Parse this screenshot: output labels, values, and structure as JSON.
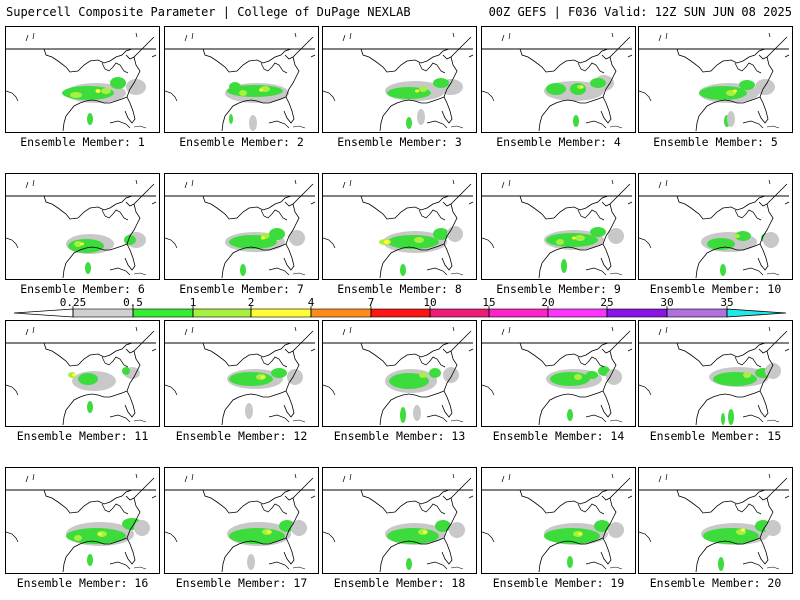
{
  "header": {
    "title": "Supercell Composite Parameter | College of DuPage NEXLAB",
    "run_info": "00Z GEFS | F036 Valid: 12Z SUN JUN 08 2025"
  },
  "panels": [
    {
      "label": "Ensemble Member: 1"
    },
    {
      "label": "Ensemble Member: 2"
    },
    {
      "label": "Ensemble Member: 3"
    },
    {
      "label": "Ensemble Member: 4"
    },
    {
      "label": "Ensemble Member: 5"
    },
    {
      "label": "Ensemble Member: 6"
    },
    {
      "label": "Ensemble Member: 7"
    },
    {
      "label": "Ensemble Member: 8"
    },
    {
      "label": "Ensemble Member: 9"
    },
    {
      "label": "Ensemble Member: 10"
    },
    {
      "label": "Ensemble Member: 11"
    },
    {
      "label": "Ensemble Member: 12"
    },
    {
      "label": "Ensemble Member: 13"
    },
    {
      "label": "Ensemble Member: 14"
    },
    {
      "label": "Ensemble Member: 15"
    },
    {
      "label": "Ensemble Member: 16"
    },
    {
      "label": "Ensemble Member: 17"
    },
    {
      "label": "Ensemble Member: 18"
    },
    {
      "label": "Ensemble Member: 19"
    },
    {
      "label": "Ensemble Member: 20"
    }
  ],
  "colorbar": {
    "ticks": [
      "0.25",
      "0.5",
      "1",
      "2",
      "4",
      "7",
      "10",
      "15",
      "20",
      "25",
      "30",
      "35"
    ],
    "colors": [
      "#d0d0d0",
      "#33ee33",
      "#a8f040",
      "#ffff33",
      "#ff8c1a",
      "#ff1414",
      "#ee1c78",
      "#ff22c8",
      "#ff33ff",
      "#8a14e6",
      "#b070e0",
      "#22e8e8"
    ]
  }
}
